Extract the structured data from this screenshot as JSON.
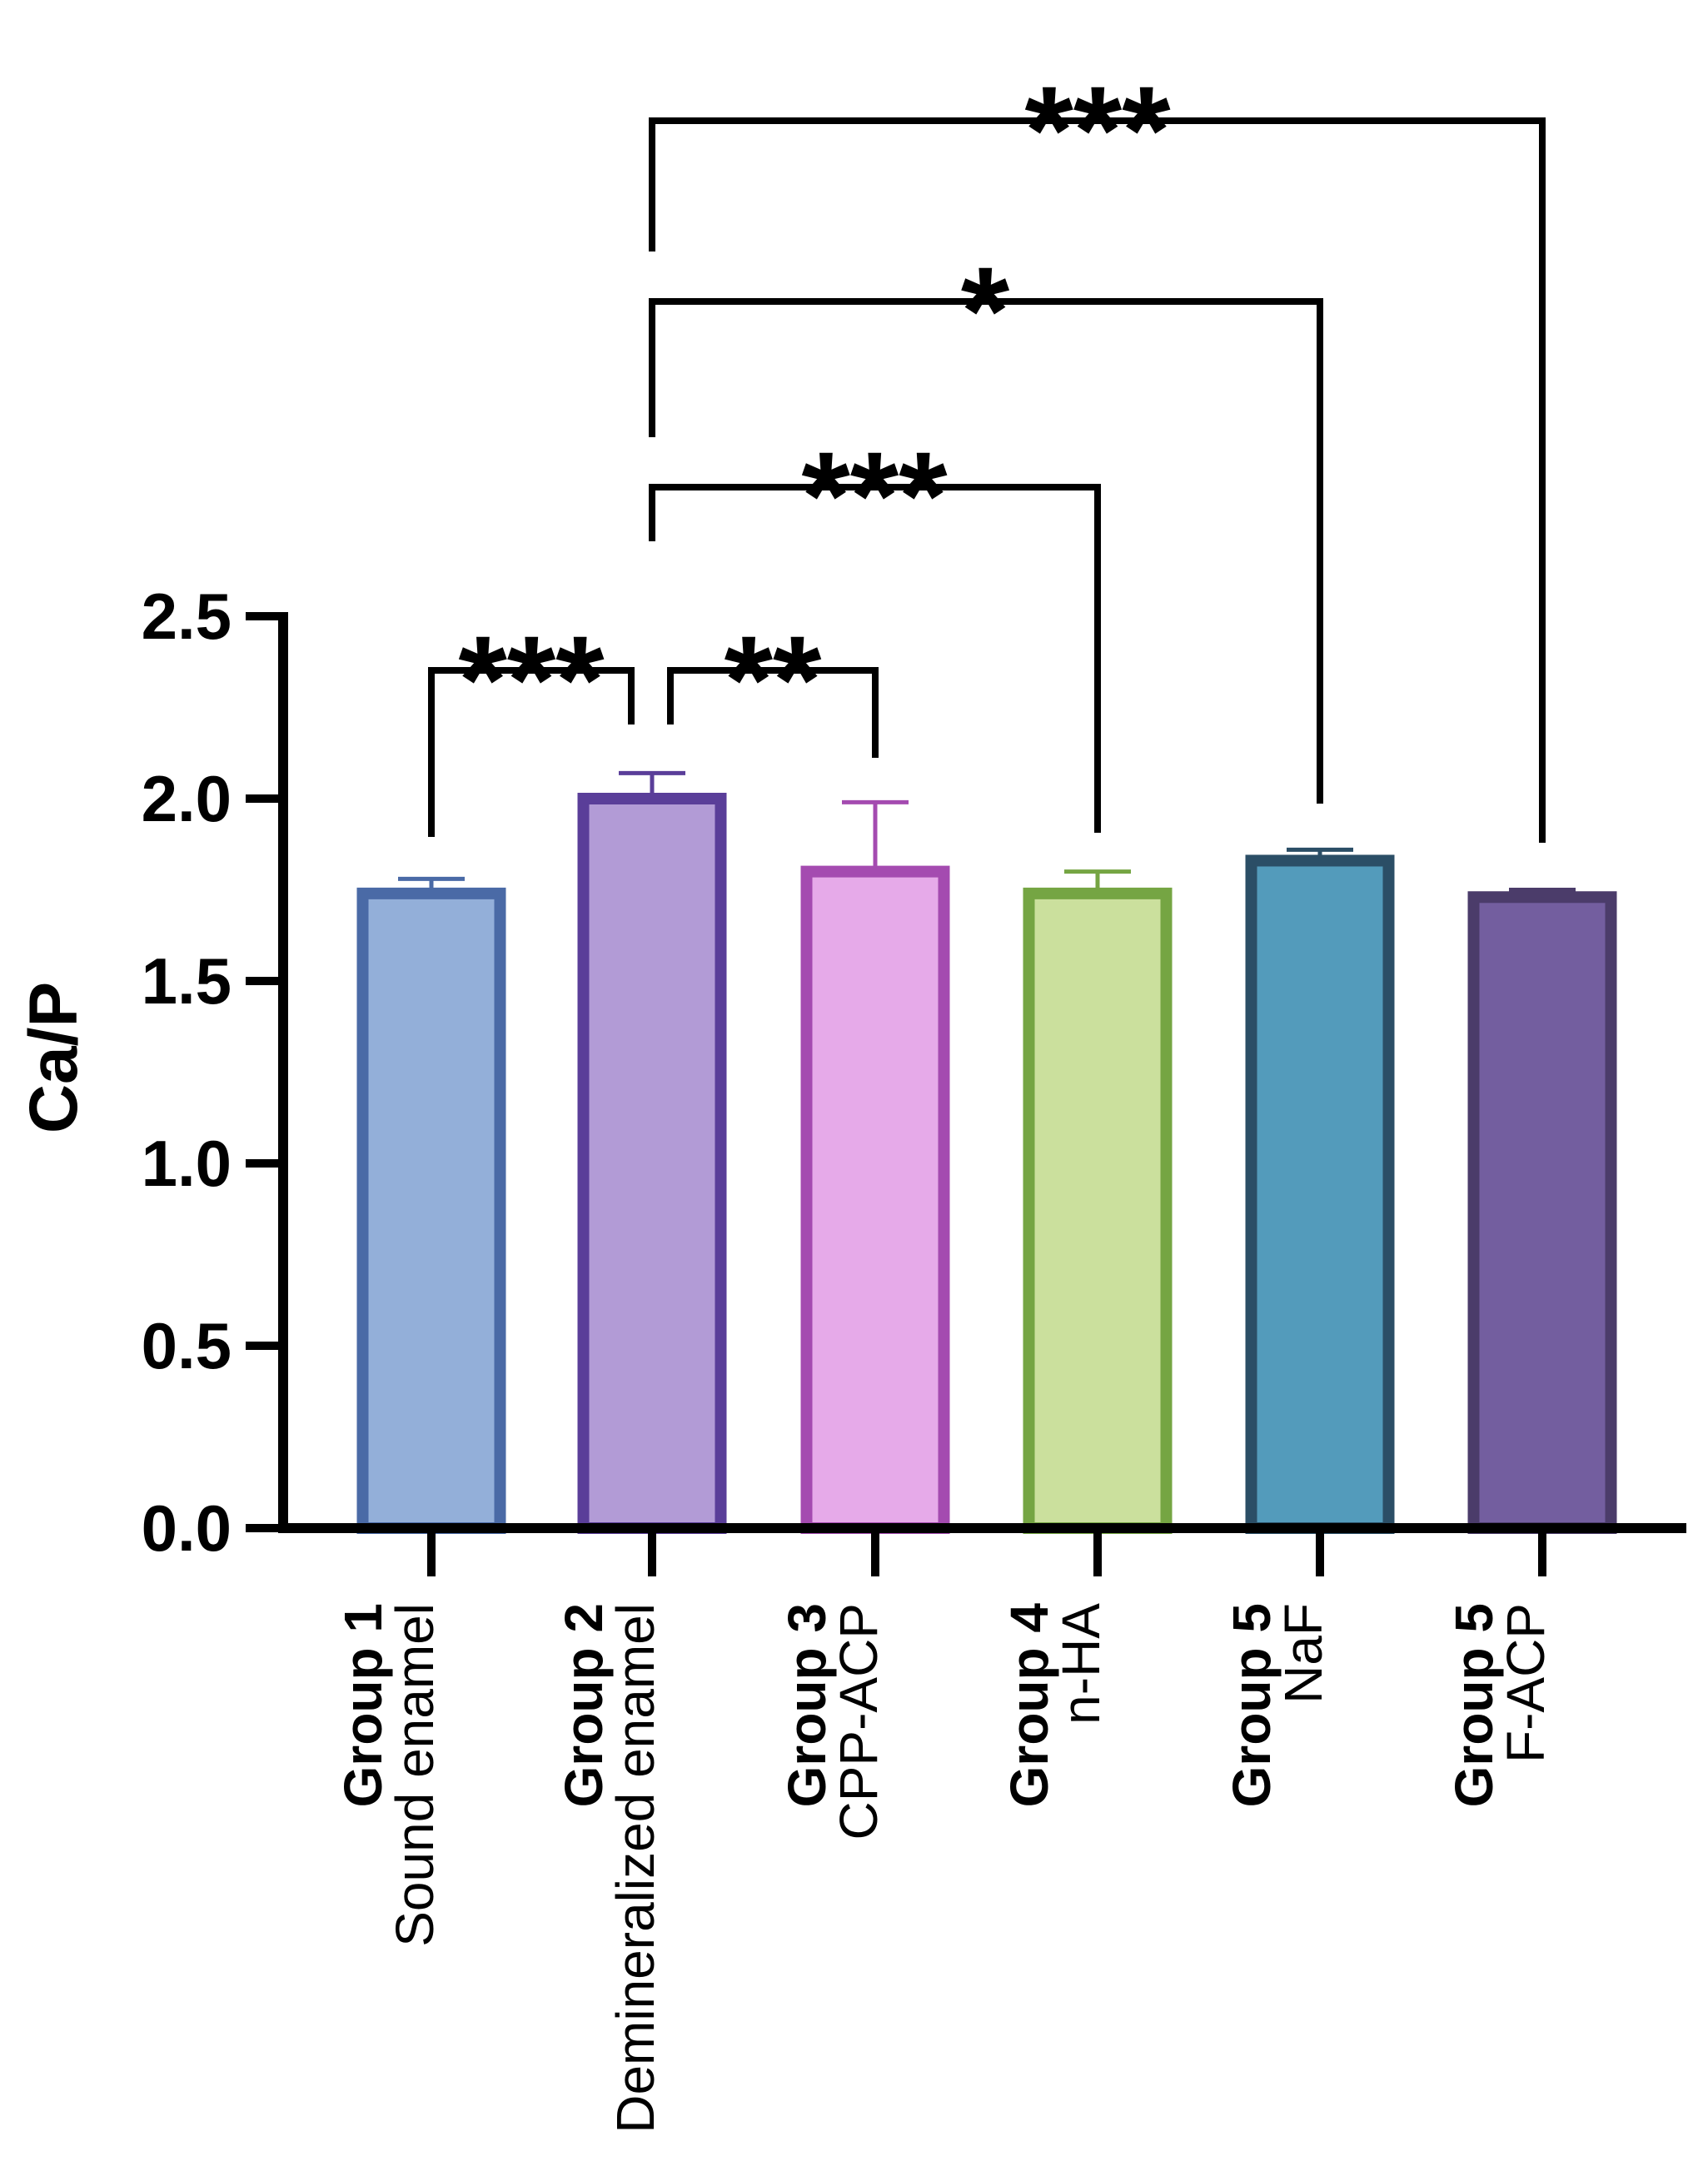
{
  "chart_data": {
    "type": "bar",
    "ylabel": "Ca/P",
    "xlabel": "",
    "ylim": [
      0,
      2.5
    ],
    "yticks": [
      "0.0",
      "0.5",
      "1.0",
      "1.5",
      "2.0",
      "2.5"
    ],
    "categories": [
      {
        "group": "Group 1",
        "name": "Sound enamel"
      },
      {
        "group": "Group 2",
        "name": "Demineralized enamel"
      },
      {
        "group": "Group 3",
        "name": "CPP-ACP"
      },
      {
        "group": "Group 4",
        "name": "n-HA"
      },
      {
        "group": "Group 5",
        "name": "NaF"
      },
      {
        "group": "Group 5",
        "name": "F-ACP"
      }
    ],
    "values": [
      1.74,
      2.0,
      1.8,
      1.74,
      1.83,
      1.73
    ],
    "errors": [
      0.04,
      0.07,
      0.19,
      0.06,
      0.03,
      0.02
    ],
    "fill_colors": [
      "#93afd9",
      "#b29bd6",
      "#e6aae9",
      "#cbe09d",
      "#539bbb",
      "#735e9f"
    ],
    "edge_colors": [
      "#4a6aa6",
      "#5a3e99",
      "#a44bb0",
      "#75a543",
      "#2b4e66",
      "#4b3c6a"
    ],
    "significance": [
      {
        "from": 0,
        "to": 1,
        "label": "***"
      },
      {
        "from": 1,
        "to": 2,
        "label": "**"
      },
      {
        "from": 1,
        "to": 3,
        "label": "***"
      },
      {
        "from": 1,
        "to": 4,
        "label": "*"
      },
      {
        "from": 1,
        "to": 5,
        "label": "***"
      }
    ]
  }
}
